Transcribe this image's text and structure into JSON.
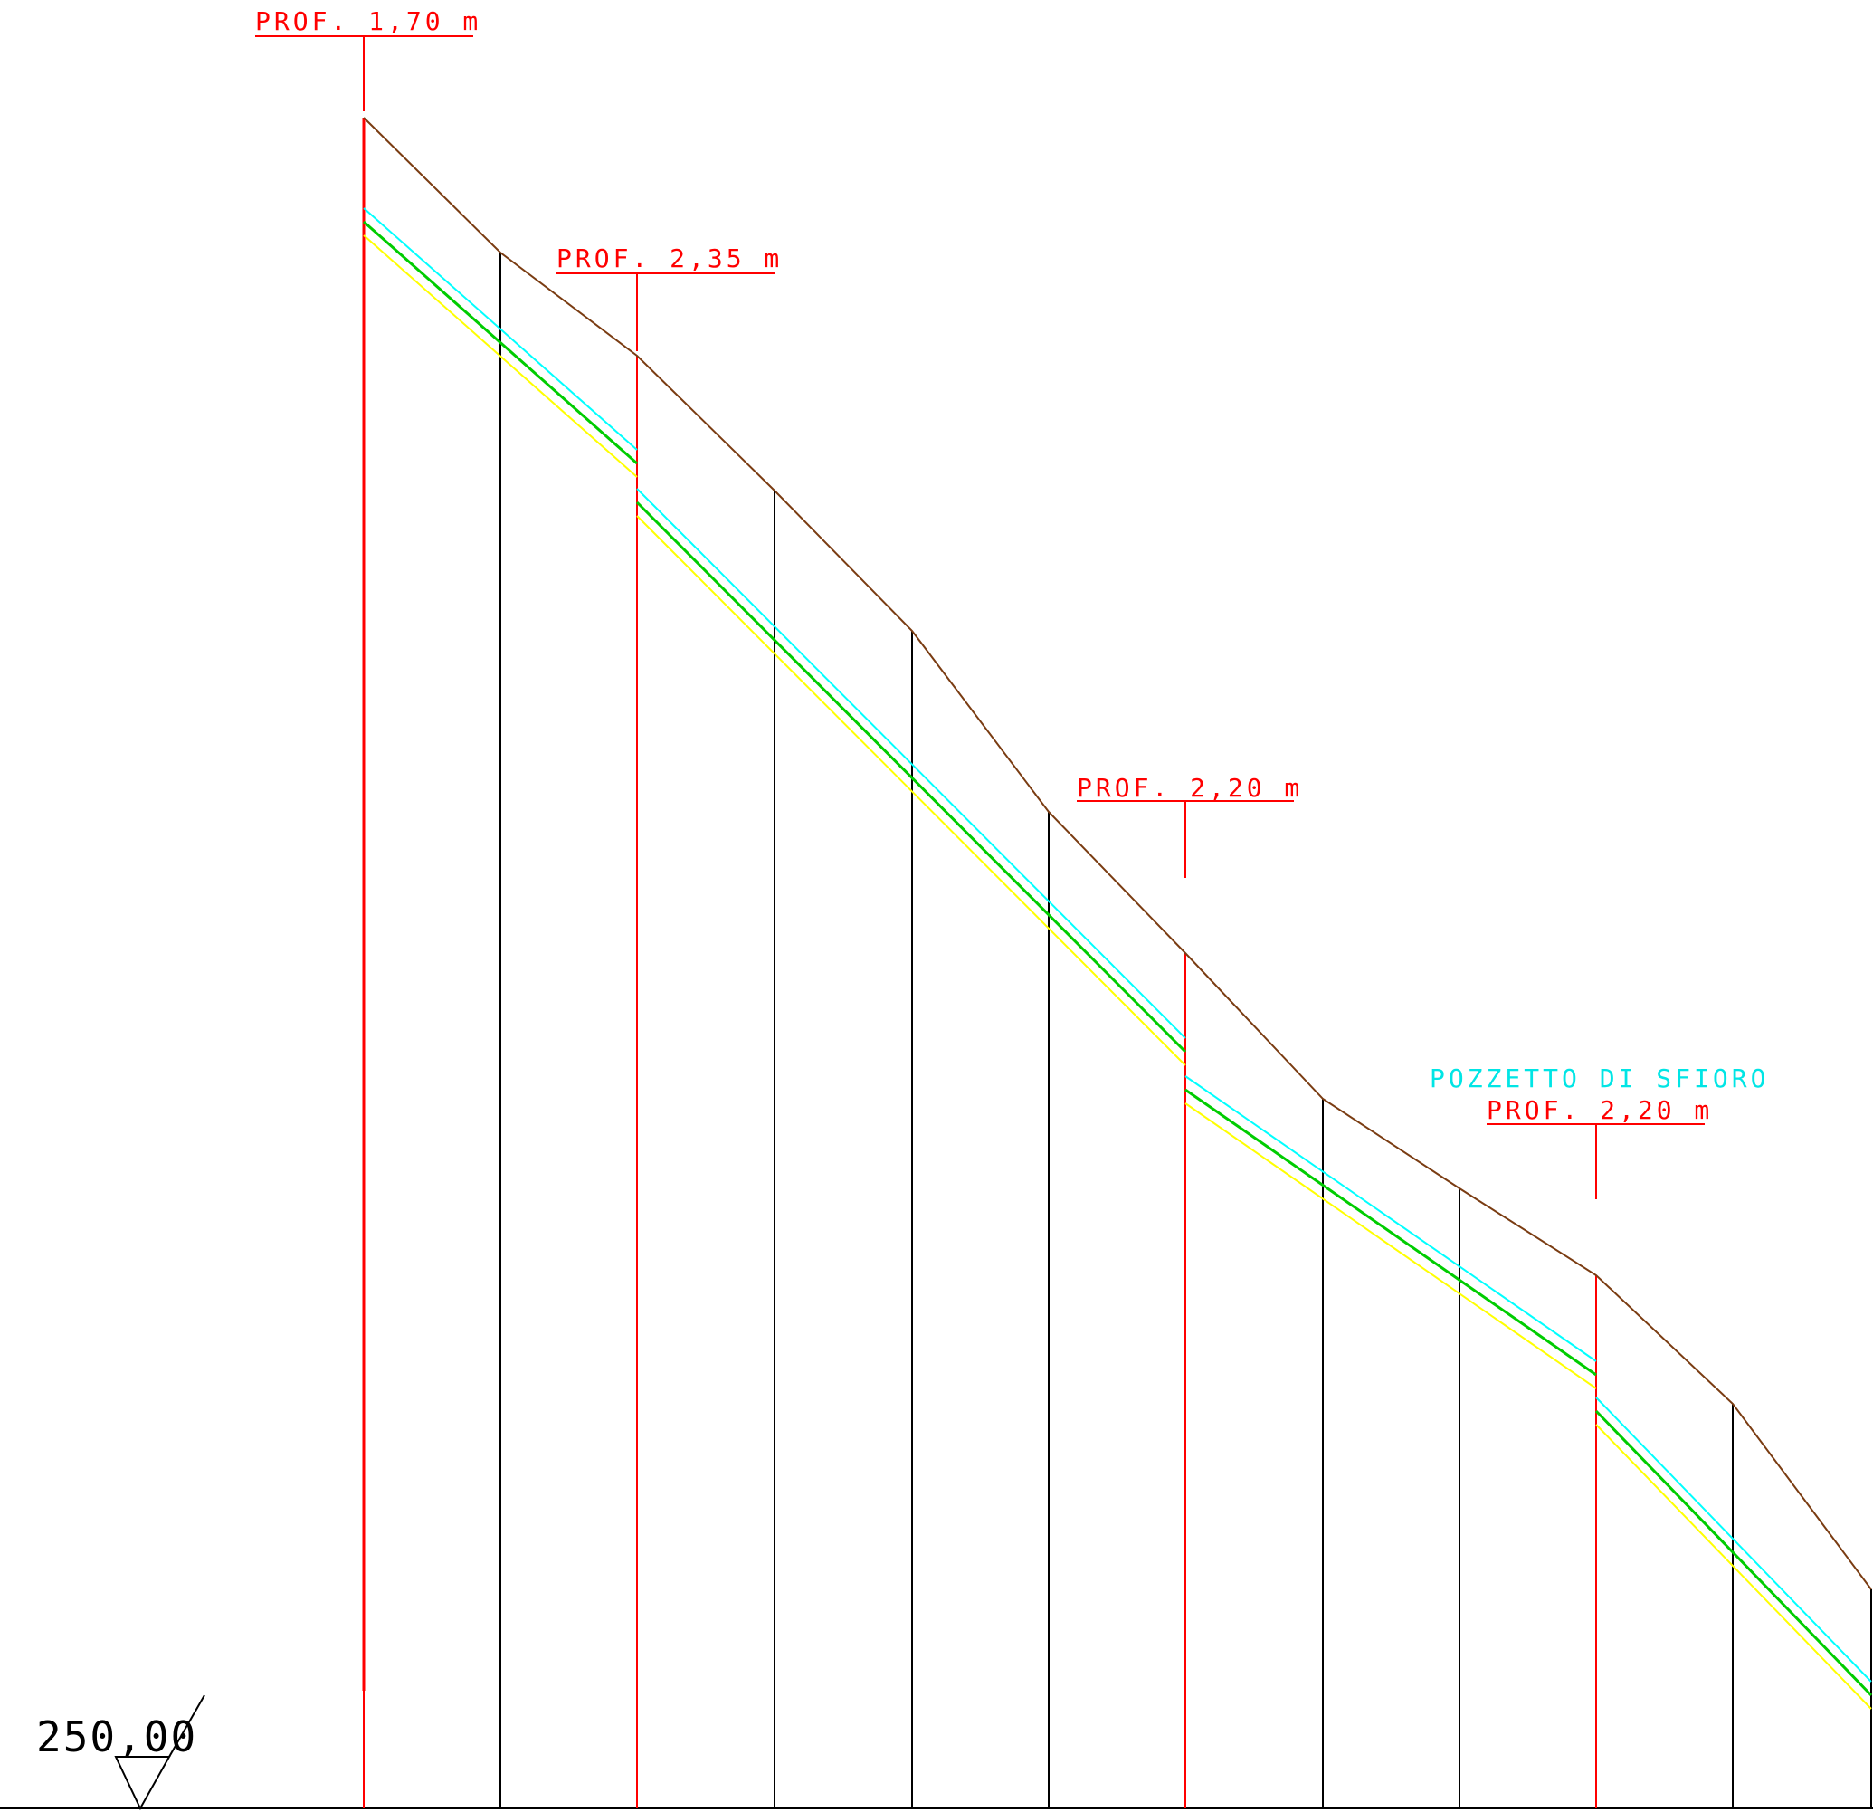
{
  "datum_label": "250,00",
  "manholes": [
    {
      "id": "p1",
      "depth_label": "PROF. 1,70 m",
      "note": ""
    },
    {
      "id": "p2",
      "depth_label": "PROF. 2,35 m",
      "note": ""
    },
    {
      "id": "p3",
      "depth_label": "PROF. 2,20 m",
      "note": ""
    },
    {
      "id": "p4",
      "depth_label": "PROF. 2,20 m",
      "note": "POZZETTO DI SFIORO"
    }
  ],
  "colors": {
    "ground": "#7a3c12",
    "pipe_top": "#00ffff",
    "pipe_axis": "#00cc00",
    "pipe_bottom": "#ffff00",
    "manhole": "#ff0000",
    "station": "#000000",
    "label": "#ff0000",
    "note": "#00e5e5"
  }
}
